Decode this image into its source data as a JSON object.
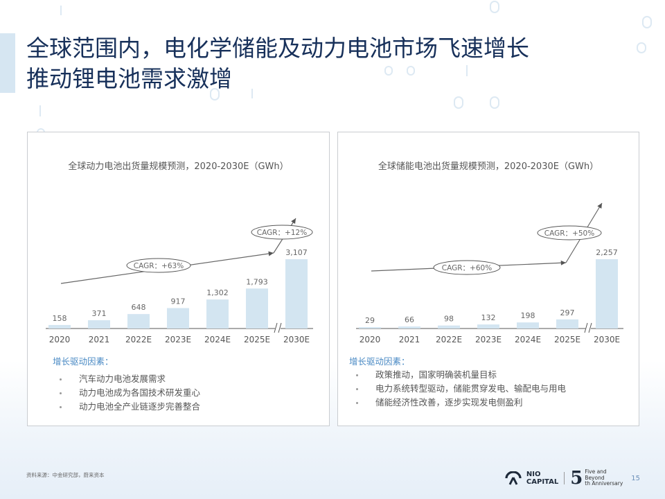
{
  "title": {
    "line1": "全球范围内，电化学储能及动力电池市场飞速增长",
    "line2": "推动锂电池需求激增"
  },
  "left_panel": {
    "drivers_title": "增长驱动因素：",
    "drivers": [
      "汽车动力电池发展需求",
      "动力电池成为各国技术研发重心",
      "动力电池全产业链逐步完善整合"
    ]
  },
  "right_panel": {
    "drivers_title": "增长驱动因素：",
    "drivers": [
      "政策推动，国家明确装机量目标",
      "电力系统转型驱动，储能贯穿发电、输配电与用电",
      "储能经济性改善，逐步实现发电侧盈利"
    ]
  },
  "chart_data": [
    {
      "type": "bar",
      "title": "全球动力电池出货量规模预测，2020-2030E（GWh）",
      "categories": [
        "2020",
        "2021",
        "2022E",
        "2023E",
        "2024E",
        "2025E",
        "2030E"
      ],
      "values": [
        158,
        371,
        648,
        917,
        1302,
        1793,
        3107
      ],
      "value_labels": [
        "158",
        "371",
        "648",
        "917",
        "1,302",
        "1,793",
        "3,107"
      ],
      "axis_break_before_last": true,
      "annotations": [
        {
          "text": "CAGR：+63%"
        },
        {
          "text": "CAGR：+12%"
        }
      ],
      "color": "#d3e5f1"
    },
    {
      "type": "bar",
      "title": "全球储能电池出货量规模预测，2020-2030E（GWh）",
      "categories": [
        "2020",
        "2021",
        "2022E",
        "2023E",
        "2024E",
        "2025E",
        "2030E"
      ],
      "values": [
        29,
        66,
        98,
        132,
        198,
        297,
        2257
      ],
      "value_labels": [
        "29",
        "66",
        "98",
        "132",
        "198",
        "297",
        "2,257"
      ],
      "axis_break_before_last": true,
      "annotations": [
        {
          "text": "CAGR：+60%"
        },
        {
          "text": "CAGR：+50%"
        }
      ],
      "color": "#d3e5f1"
    }
  ],
  "footer": {
    "source": "资料来源：中金研究部，蔚来资本",
    "logo_line1": "NIO",
    "logo_line2": "CAPITAL",
    "anniv_number": "5",
    "anniv_line1": "Five and",
    "anniv_line2": "Beyond",
    "anniv_line3": "th Anniversary",
    "page_number": "15"
  }
}
